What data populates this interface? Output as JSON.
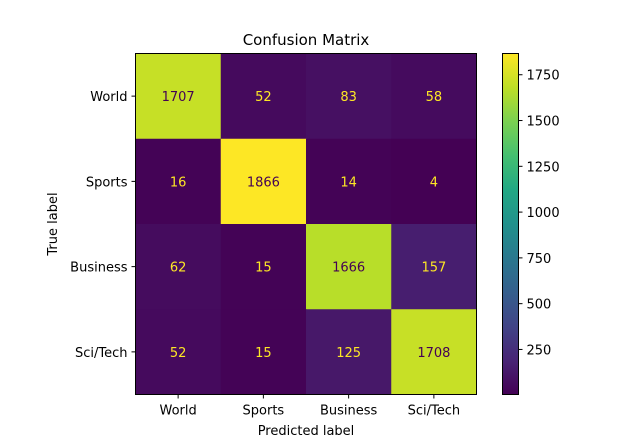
{
  "chart_data": {
    "type": "heatmap",
    "title": "Confusion Matrix",
    "xlabel": "Predicted label",
    "ylabel": "True label",
    "x_categories": [
      "World",
      "Sports",
      "Business",
      "Sci/Tech"
    ],
    "y_categories": [
      "World",
      "Sports",
      "Business",
      "Sci/Tech"
    ],
    "values": [
      [
        1707,
        52,
        83,
        58
      ],
      [
        16,
        1866,
        14,
        4
      ],
      [
        62,
        15,
        1666,
        157
      ],
      [
        52,
        15,
        125,
        1708
      ]
    ],
    "colormap": "viridis",
    "colorbar": {
      "range": [
        4,
        1866
      ],
      "ticks": [
        250,
        500,
        750,
        1000,
        1250,
        1500,
        1750
      ]
    },
    "annotation_colors": {
      "on_dark": "#fde725",
      "on_light": "#440154"
    },
    "grid": false
  }
}
